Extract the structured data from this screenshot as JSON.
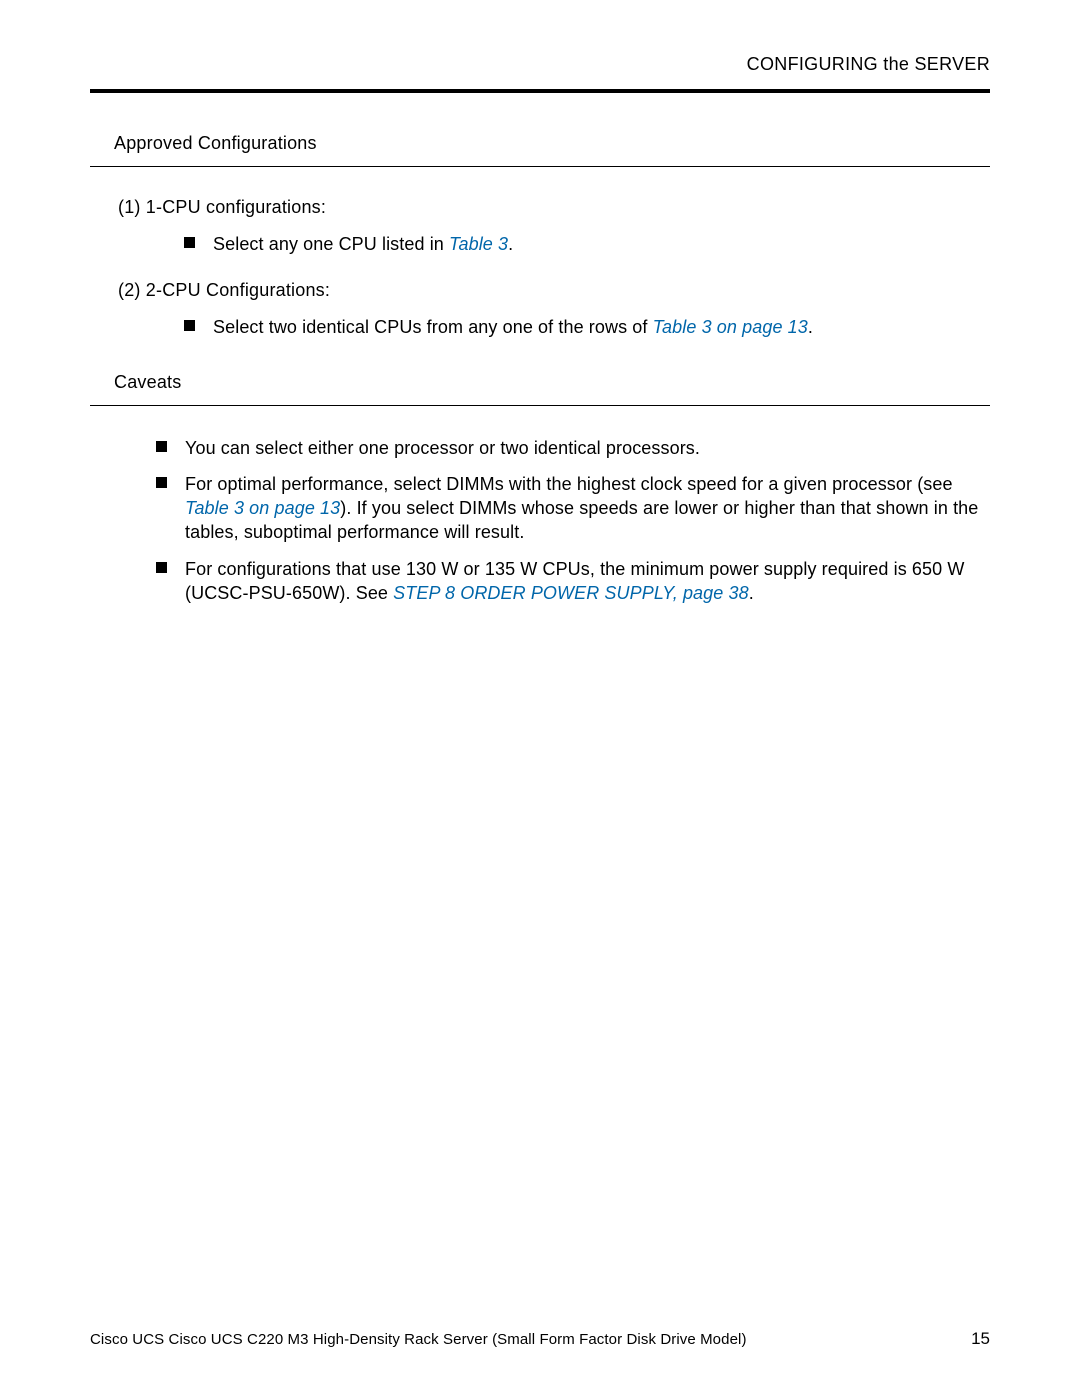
{
  "colors": {
    "text": "#000000",
    "link": "#0066aa",
    "background": "#ffffff"
  },
  "header": {
    "text": "CONFIGURING the SERVER"
  },
  "section1": {
    "heading": "Approved Configurations",
    "config1": {
      "label": "(1)  1-CPU configurations:",
      "bullet_prefix": "Select any one CPU listed in ",
      "bullet_link": "Table 3",
      "bullet_suffix": "."
    },
    "config2": {
      "label": "(2)  2-CPU Configurations:",
      "bullet_prefix": "Select two identical CPUs from any one of the rows of ",
      "bullet_link": "Table 3 on page 13",
      "bullet_suffix": "."
    }
  },
  "section2": {
    "heading": "Caveats",
    "bullet1": "You can select either one processor or two identical processors.",
    "bullet2_prefix": "For optimal performance, select DIMMs with the highest clock speed for a given processor (see ",
    "bullet2_link": "Table 3 on page 13",
    "bullet2_suffix": "). If you select DIMMs whose speeds are lower or higher than that shown in the tables, suboptimal performance will result.",
    "bullet3_prefix": "For configurations that use 130 W or 135 W CPUs, the minimum power supply required is 650 W (UCSC-PSU-650W). See ",
    "bullet3_link": "STEP 8 ORDER POWER SUPPLY, page 38",
    "bullet3_suffix": "."
  },
  "footer": {
    "text": "Cisco UCS Cisco UCS C220 M3 High-Density Rack Server (Small Form Factor Disk Drive Model)",
    "page_number": "15"
  }
}
